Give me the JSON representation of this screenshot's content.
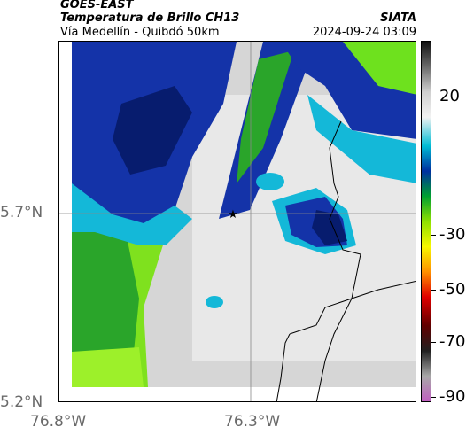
{
  "header": {
    "satellite": "GOES-EAST",
    "product": "Temperatura de Brillo CH13",
    "region": "Vía Medellín - Quibdó 50km",
    "agency": "SIATA",
    "datetime": "2024-09-24 03:09"
  },
  "axes": {
    "lat_ticks": [
      "5.7°N",
      "5.2°N"
    ],
    "lon_ticks": [
      "76.8°W",
      "76.3°W"
    ]
  },
  "colorbar": {
    "labels": [
      "20",
      "-30",
      "-50",
      "-70",
      "-90"
    ],
    "stops": [
      "#111111",
      "#6b6b6b",
      "#d0d0d0",
      "#f2f2f2",
      "#00bcd4",
      "#0030a0",
      "#00a030",
      "#8ee000",
      "#f8f800",
      "#ff9000",
      "#e00000",
      "#600000",
      "#202020",
      "#a8a8a8",
      "#c060c0"
    ]
  },
  "map": {
    "marker_symbol": "★",
    "colors": {
      "cold_core": "#071c6e",
      "dark_blue": "#1433a8",
      "cyan": "#14b8d8",
      "green": "#2aa52a",
      "lime": "#6ee11e",
      "light_gray": "#e2e2e2",
      "gray": "#c8c8c8"
    }
  }
}
